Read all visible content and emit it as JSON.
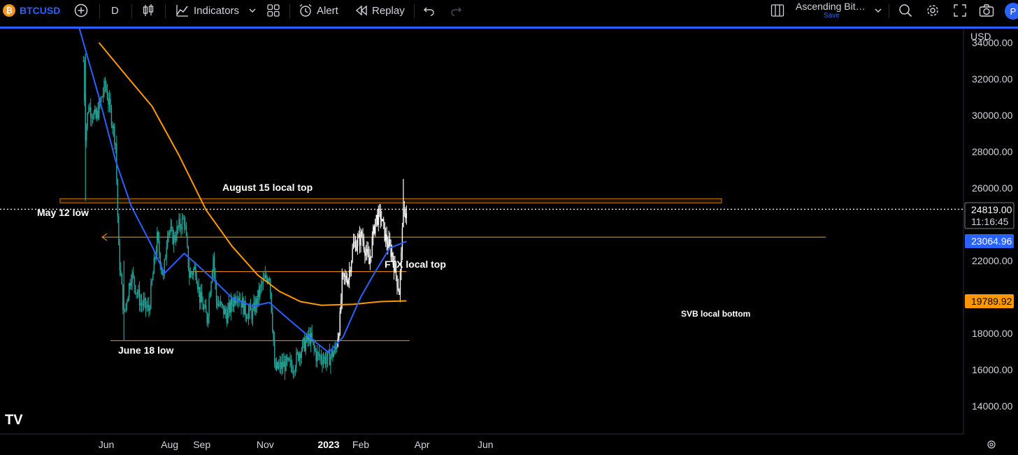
{
  "toolbar": {
    "symbol": "BTCUSD",
    "symbol_icon": "bitcoin-icon",
    "interval": "D",
    "indicators_label": "Indicators",
    "alert_label": "Alert",
    "replay_label": "Replay",
    "layout_name": "Ascending Bit…",
    "layout_save": "Save",
    "avatar_letter": "P"
  },
  "price_scale": {
    "currency": "USD",
    "ticks": [
      "34000.00",
      "32000.00",
      "30000.00",
      "28000.00",
      "26000.00",
      "22000.00",
      "18000.00",
      "16000.00",
      "14000.00"
    ],
    "last_price": "24819.00",
    "countdown": "11:16:45",
    "ma50_value": "23064.96",
    "ma200_value": "19789.92"
  },
  "time_scale": {
    "labels": [
      "Jun",
      "Aug",
      "Sep",
      "Nov",
      "2023",
      "Feb",
      "Apr",
      "Jun"
    ]
  },
  "colors": {
    "background": "#000000",
    "candle": "#26a69a",
    "candle_up_recent": "#ffffff",
    "ma_blue": "#2962ff",
    "ma_orange": "#ff9800",
    "level_line": "#ff9800",
    "accent": "#2962ff"
  },
  "annotations": {
    "aug15": "August 15 local top",
    "may12": "May 12 low",
    "ftx": "FTX local top",
    "june18": "June 18 low",
    "svb": "SVB local bottom"
  },
  "chart_data": {
    "type": "candlestick",
    "symbol": "BTCUSD",
    "interval": "1D",
    "y_range": [
      13000,
      35000
    ],
    "x_range": [
      "2022-05-01",
      "2023-06-30"
    ],
    "x_ticks": [
      {
        "label": "Jun",
        "date": "2022-06-01"
      },
      {
        "label": "Aug",
        "date": "2022-08-01"
      },
      {
        "label": "Sep",
        "date": "2022-09-01"
      },
      {
        "label": "Nov",
        "date": "2022-11-01"
      },
      {
        "label": "2023",
        "date": "2023-01-01"
      },
      {
        "label": "Feb",
        "date": "2023-02-01"
      },
      {
        "label": "Apr",
        "date": "2023-04-01"
      },
      {
        "label": "Jun",
        "date": "2023-06-01"
      }
    ],
    "y_ticks": [
      34000,
      32000,
      30000,
      28000,
      26000,
      22000,
      18000,
      16000,
      14000
    ],
    "close_path": [
      [
        "2022-05-10",
        33000
      ],
      [
        "2022-05-12",
        29000
      ],
      [
        "2022-05-15",
        30500
      ],
      [
        "2022-05-22",
        29800
      ],
      [
        "2022-05-31",
        31700
      ],
      [
        "2022-06-06",
        29900
      ],
      [
        "2022-06-10",
        28500
      ],
      [
        "2022-06-13",
        22500
      ],
      [
        "2022-06-18",
        19000
      ],
      [
        "2022-06-25",
        21300
      ],
      [
        "2022-07-04",
        19700
      ],
      [
        "2022-07-12",
        19300
      ],
      [
        "2022-07-20",
        23200
      ],
      [
        "2022-07-26",
        21000
      ],
      [
        "2022-07-30",
        23800
      ],
      [
        "2022-08-05",
        23200
      ],
      [
        "2022-08-10",
        23900
      ],
      [
        "2022-08-15",
        24300
      ],
      [
        "2022-08-20",
        21200
      ],
      [
        "2022-08-26",
        21600
      ],
      [
        "2022-08-30",
        20000
      ],
      [
        "2022-09-06",
        18800
      ],
      [
        "2022-09-12",
        22300
      ],
      [
        "2022-09-15",
        19800
      ],
      [
        "2022-09-25",
        19000
      ],
      [
        "2022-10-05",
        20300
      ],
      [
        "2022-10-13",
        19200
      ],
      [
        "2022-10-20",
        19100
      ],
      [
        "2022-10-29",
        20700
      ],
      [
        "2022-11-05",
        21300
      ],
      [
        "2022-11-09",
        17600
      ],
      [
        "2022-11-10",
        16000
      ],
      [
        "2022-11-20",
        16300
      ],
      [
        "2022-11-28",
        16200
      ],
      [
        "2022-12-05",
        17100
      ],
      [
        "2022-12-14",
        17800
      ],
      [
        "2022-12-20",
        16800
      ],
      [
        "2022-12-31",
        16550
      ],
      [
        "2023-01-08",
        17100
      ],
      [
        "2023-01-12",
        18800
      ],
      [
        "2023-01-14",
        20900
      ],
      [
        "2023-01-20",
        21100
      ],
      [
        "2023-01-25",
        22900
      ],
      [
        "2023-01-30",
        23100
      ],
      [
        "2023-02-02",
        23400
      ],
      [
        "2023-02-09",
        21800
      ],
      [
        "2023-02-15",
        24300
      ],
      [
        "2023-02-20",
        24500
      ],
      [
        "2023-02-25",
        23200
      ],
      [
        "2023-03-03",
        22400
      ],
      [
        "2023-03-10",
        20300
      ],
      [
        "2023-03-12",
        22200
      ],
      [
        "2023-03-13",
        24200
      ],
      [
        "2023-03-17",
        24819
      ]
    ],
    "ma_orange": {
      "value": 19789.92,
      "points": [
        [
          "2022-05-25",
          34000
        ],
        [
          "2022-06-20",
          32200
        ],
        [
          "2022-07-15",
          30500
        ],
        [
          "2022-08-10",
          27800
        ],
        [
          "2022-09-05",
          24800
        ],
        [
          "2022-09-30",
          22800
        ],
        [
          "2022-10-25",
          21200
        ],
        [
          "2022-11-15",
          20300
        ],
        [
          "2022-12-05",
          19750
        ],
        [
          "2022-12-25",
          19550
        ],
        [
          "2023-01-25",
          19600
        ],
        [
          "2023-02-20",
          19750
        ],
        [
          "2023-03-17",
          19790
        ]
      ]
    },
    "ma_blue": {
      "value": 23064.96,
      "points": [
        [
          "2022-05-05",
          35000
        ],
        [
          "2022-05-25",
          31000
        ],
        [
          "2022-06-10",
          27500
        ],
        [
          "2022-06-25",
          25000
        ],
        [
          "2022-07-15",
          22800
        ],
        [
          "2022-07-27",
          21300
        ],
        [
          "2022-08-15",
          22400
        ],
        [
          "2022-08-25",
          21900
        ],
        [
          "2022-09-15",
          20800
        ],
        [
          "2022-10-01",
          19900
        ],
        [
          "2022-10-20",
          19500
        ],
        [
          "2022-11-05",
          19700
        ],
        [
          "2022-11-25",
          18700
        ],
        [
          "2022-12-20",
          17500
        ],
        [
          "2023-01-01",
          16950
        ],
        [
          "2023-01-15",
          17800
        ],
        [
          "2023-02-01",
          20000
        ],
        [
          "2023-02-15",
          21400
        ],
        [
          "2023-03-01",
          22700
        ],
        [
          "2023-03-17",
          23065
        ]
      ]
    },
    "levels": [
      {
        "label": "May 12 low",
        "value": 25300,
        "from": "2022-05-12",
        "to": "2023-03-17",
        "style": "band"
      },
      {
        "label": "August 15 local top",
        "value": 23300,
        "from": "2023-03-30",
        "to": "2022-08-01",
        "style": "arrow"
      },
      {
        "label": "FTX local top",
        "value": 21400,
        "from": "2022-08-20",
        "to": "2023-03-17",
        "style": "line"
      },
      {
        "label": "June 18 low",
        "value": 17600,
        "from": "2022-06-05",
        "to": "2023-03-20",
        "style": "line"
      },
      {
        "label": "SVB local bottom",
        "value": 19800,
        "date": "2023-03-10",
        "style": "text"
      }
    ],
    "grid": false,
    "legend": "none"
  }
}
